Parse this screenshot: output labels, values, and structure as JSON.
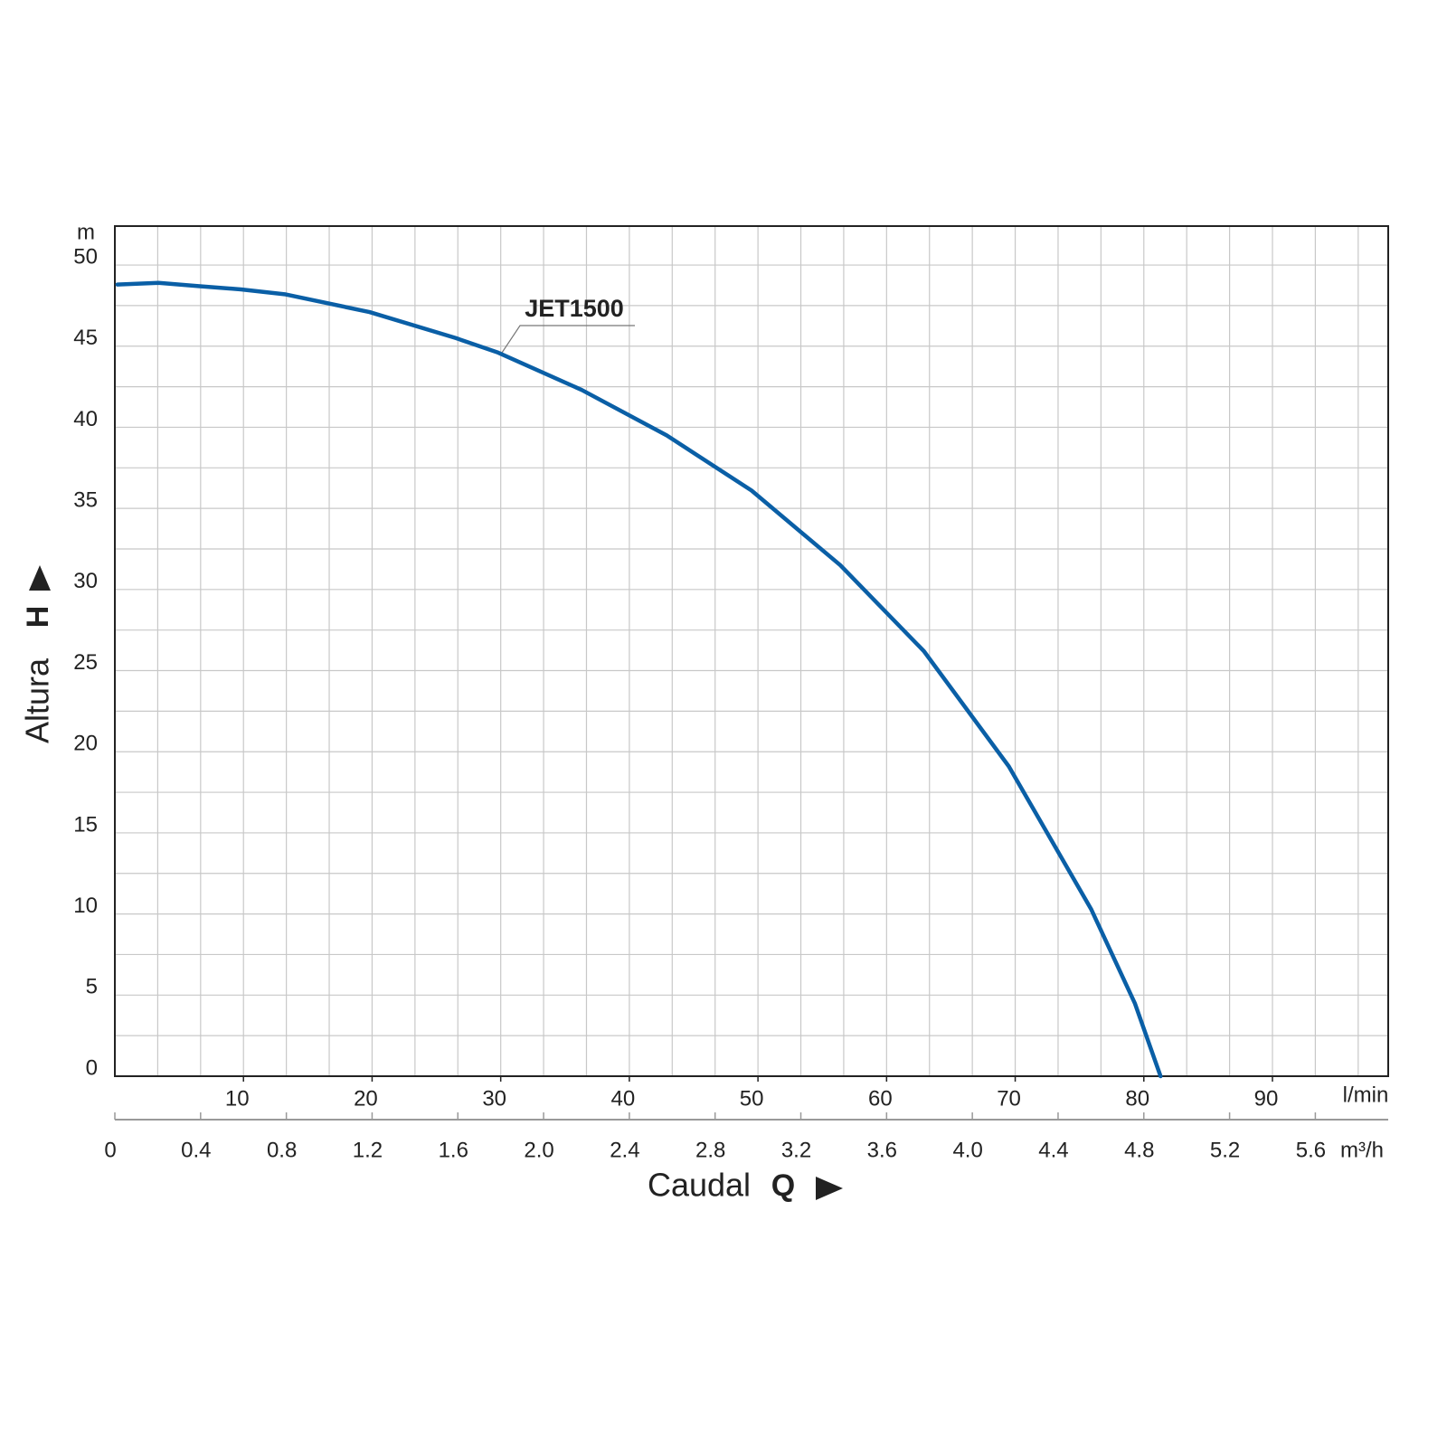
{
  "chart_data": {
    "type": "line",
    "y_label": "Altura",
    "y_symbol": "H",
    "y_unit": "m",
    "x_label": "Caudal",
    "x_symbol": "Q",
    "x_unit": "l/min",
    "x2_unit": "m³/h",
    "xlim": [
      0,
      99
    ],
    "xticks": [
      10,
      20,
      30,
      40,
      50,
      60,
      70,
      80,
      90
    ],
    "x2lim": [
      0,
      5.94
    ],
    "x2ticks": [
      0,
      0.4,
      0.8,
      1.2,
      1.6,
      {
        "value": 2,
        "label": "2.0"
      },
      2.4,
      2.8,
      3.2,
      3.6,
      {
        "value": 4,
        "label": "4.0"
      },
      4.4,
      4.8,
      5.2,
      5.6
    ],
    "ylim": [
      0,
      52.4
    ],
    "yticks": [
      0,
      5,
      10,
      15,
      20,
      25,
      30,
      35,
      40,
      45,
      50
    ],
    "grid": true,
    "x": [
      0.2,
      3.4,
      6.5,
      9.8,
      13.2,
      19.8,
      26.5,
      29.8,
      36.3,
      42.9,
      49.5,
      56.4,
      62.9,
      69.5,
      75.9,
      79.3,
      81.3
    ],
    "series": [
      {
        "name": "JET1500",
        "color": "#0a5fa6",
        "values": [
          48.8,
          48.9,
          48.7,
          48.5,
          48.2,
          47.1,
          45.5,
          44.6,
          42.3,
          39.5,
          36.1,
          31.5,
          26.2,
          19.1,
          10.3,
          4.5,
          0
        ]
      }
    ]
  }
}
